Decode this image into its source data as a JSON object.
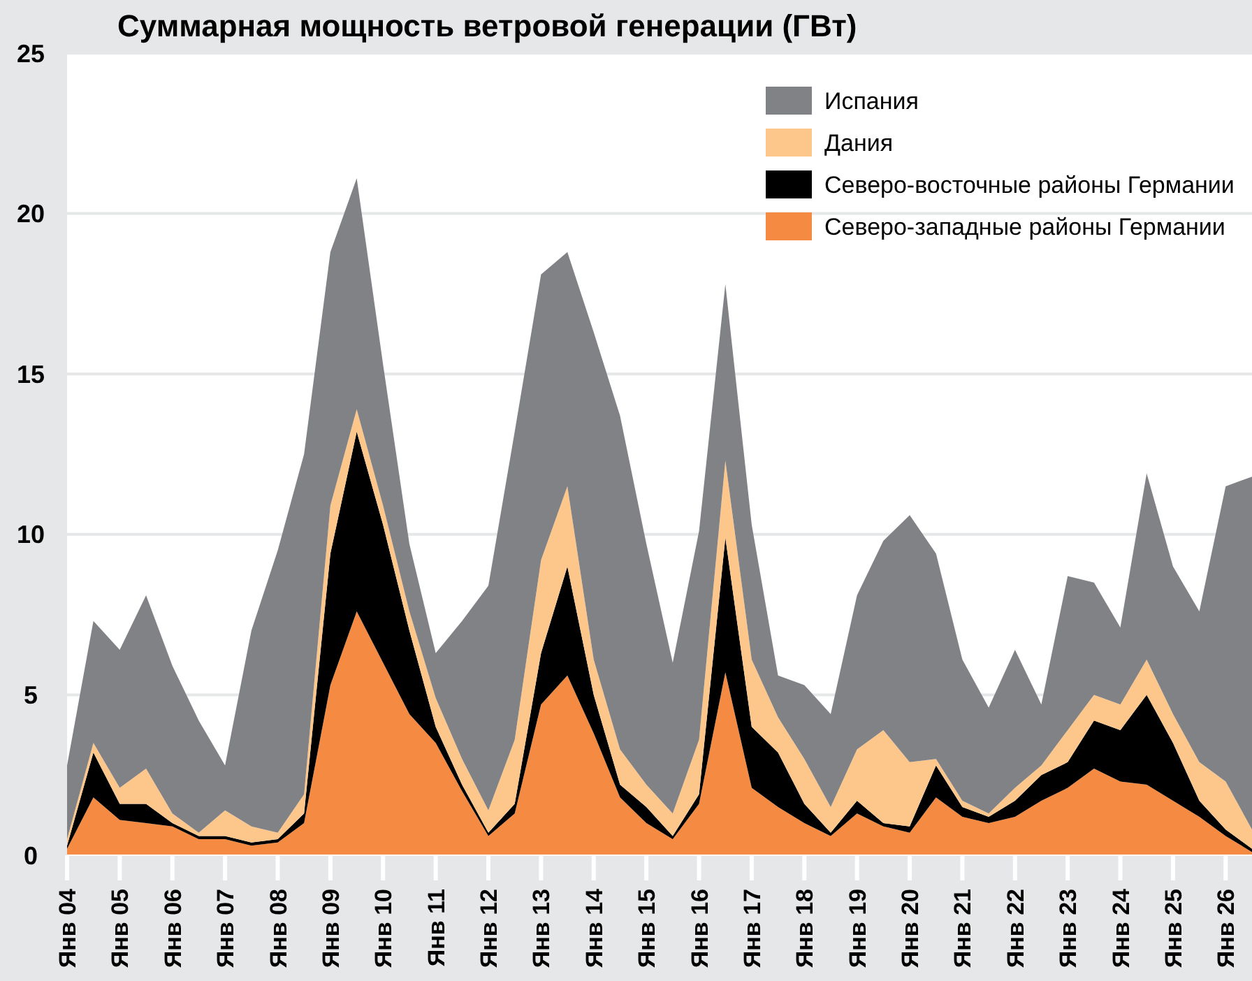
{
  "chart_data": {
    "type": "area",
    "title": "Суммарная мощность ветровой генерации (ГВт)",
    "stacked": true,
    "categories": [
      "Янв 04",
      null,
      "Янв 05",
      null,
      "Янв 06",
      null,
      "Янв 07",
      null,
      "Янв 08",
      null,
      "Янв 09",
      null,
      "Янв 10",
      null,
      "Янв 11",
      null,
      "Янв 12",
      null,
      "Янв 13",
      null,
      "Янв 14",
      null,
      "Янв 15",
      null,
      "Янв 16",
      null,
      "Янв 17",
      null,
      "Янв 18",
      null,
      "Янв 19",
      null,
      "Янв 20",
      null,
      "Янв 21",
      null,
      "Янв 22",
      null,
      "Янв 23",
      null,
      "Янв 24",
      null,
      "Янв 25",
      null,
      "Янв 26",
      null
    ],
    "series": [
      {
        "name": "Северо-западные районы Германии",
        "color": "#f58a42",
        "values": [
          0.2,
          1.8,
          1.1,
          1.0,
          0.9,
          0.5,
          0.5,
          0.3,
          0.4,
          1.0,
          5.3,
          7.6,
          6.0,
          4.4,
          3.5,
          2.0,
          0.6,
          1.3,
          4.7,
          5.6,
          3.8,
          1.8,
          1.0,
          0.5,
          1.6,
          5.7,
          2.1,
          1.5,
          1.0,
          0.6,
          1.3,
          0.9,
          0.7,
          1.8,
          1.2,
          1.0,
          1.2,
          1.7,
          2.1,
          2.7,
          2.3,
          2.2,
          1.7,
          1.2,
          0.6,
          0.1
        ]
      },
      {
        "name": "Северо-восточные районы Германии",
        "color": "#000000",
        "values": [
          0.1,
          1.4,
          0.5,
          0.6,
          0.1,
          0.1,
          0.1,
          0.1,
          0.1,
          0.3,
          4.1,
          5.6,
          4.3,
          2.6,
          0.5,
          0.2,
          0.1,
          0.3,
          1.6,
          3.4,
          1.2,
          0.4,
          0.5,
          0.1,
          0.3,
          4.2,
          1.9,
          1.7,
          0.6,
          0.1,
          0.4,
          0.1,
          0.2,
          1.0,
          0.3,
          0.2,
          0.5,
          0.8,
          0.8,
          1.5,
          1.6,
          2.8,
          1.8,
          0.5,
          0.2,
          0.1
        ]
      },
      {
        "name": "Дания",
        "color": "#fdc68a",
        "values": [
          0.2,
          0.3,
          0.5,
          1.1,
          0.3,
          0.1,
          0.8,
          0.5,
          0.2,
          0.6,
          1.5,
          0.7,
          0.6,
          0.6,
          0.9,
          0.8,
          0.7,
          2.0,
          2.9,
          2.5,
          1.1,
          1.1,
          0.7,
          0.7,
          1.7,
          2.4,
          2.1,
          1.1,
          1.4,
          0.8,
          1.6,
          2.9,
          2.0,
          0.2,
          0.2,
          0.1,
          0.4,
          0.3,
          1.0,
          0.8,
          0.8,
          1.1,
          0.9,
          1.2,
          1.5,
          0.6
        ]
      },
      {
        "name": "Испания",
        "color": "#818285",
        "values": [
          2.3,
          3.8,
          4.3,
          5.4,
          4.6,
          3.5,
          1.4,
          6.1,
          8.8,
          10.6,
          7.9,
          7.2,
          4.4,
          2.1,
          1.4,
          4.3,
          7.0,
          9.6,
          8.9,
          7.3,
          10.2,
          10.4,
          7.5,
          4.7,
          6.5,
          5.5,
          4.2,
          1.3,
          2.3,
          2.9,
          4.8,
          5.9,
          7.7,
          6.4,
          4.4,
          3.3,
          4.3,
          1.9,
          4.8,
          3.5,
          2.4,
          5.8,
          4.6,
          4.7,
          9.2,
          11.0
        ]
      }
    ],
    "ylim": [
      0,
      25
    ],
    "yticks": [
      0,
      5,
      10,
      15,
      20,
      25
    ],
    "grid": "y",
    "legend": "top right"
  }
}
